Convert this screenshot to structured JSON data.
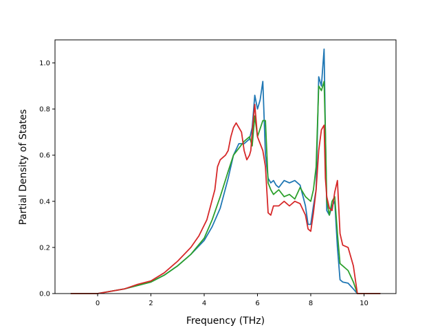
{
  "chart_data": {
    "type": "line",
    "title": "",
    "xlabel": "Frequency (THz)",
    "ylabel": "Partial Density of States",
    "xlim": [
      -1.6,
      11.2
    ],
    "ylim": [
      0,
      1.1
    ],
    "xticks": [
      0,
      2,
      4,
      6,
      8,
      10
    ],
    "yticks": [
      0.0,
      0.2,
      0.4,
      0.6,
      0.8,
      1.0
    ],
    "xtick_labels": [
      "0",
      "2",
      "4",
      "6",
      "8",
      "10"
    ],
    "ytick_labels": [
      "0.0",
      "0.2",
      "0.4",
      "0.6",
      "0.8",
      "1.0"
    ],
    "grid": false,
    "legend": false,
    "series": [
      {
        "color": "#1f77b4",
        "x": [
          -1.0,
          0.0,
          0.5,
          1.0,
          1.5,
          2.0,
          2.5,
          3.0,
          3.5,
          4.0,
          4.3,
          4.6,
          4.9,
          5.1,
          5.3,
          5.5,
          5.7,
          5.8,
          5.9,
          6.0,
          6.1,
          6.2,
          6.3,
          6.4,
          6.5,
          6.6,
          6.7,
          6.8,
          7.0,
          7.2,
          7.4,
          7.6,
          7.8,
          7.9,
          8.0,
          8.1,
          8.2,
          8.3,
          8.4,
          8.5,
          8.55,
          8.6,
          8.7,
          8.8,
          8.9,
          9.0,
          9.1,
          9.2,
          9.4,
          9.6,
          9.75,
          10.6
        ],
        "y": [
          0.0,
          0.0,
          0.01,
          0.02,
          0.035,
          0.05,
          0.08,
          0.12,
          0.17,
          0.23,
          0.29,
          0.37,
          0.5,
          0.6,
          0.65,
          0.65,
          0.67,
          0.72,
          0.86,
          0.8,
          0.84,
          0.92,
          0.6,
          0.5,
          0.48,
          0.49,
          0.47,
          0.46,
          0.49,
          0.48,
          0.49,
          0.47,
          0.38,
          0.3,
          0.3,
          0.38,
          0.45,
          0.94,
          0.9,
          1.06,
          0.7,
          0.36,
          0.34,
          0.38,
          0.4,
          0.2,
          0.06,
          0.05,
          0.045,
          0.02,
          0.0,
          0.0
        ]
      },
      {
        "color": "#2ca02c",
        "x": [
          -1.0,
          0.0,
          0.5,
          1.0,
          1.5,
          2.0,
          2.5,
          3.0,
          3.5,
          4.0,
          4.3,
          4.6,
          4.9,
          5.1,
          5.3,
          5.5,
          5.7,
          5.8,
          5.9,
          6.0,
          6.2,
          6.3,
          6.4,
          6.5,
          6.6,
          6.8,
          7.0,
          7.2,
          7.4,
          7.6,
          7.8,
          7.9,
          8.0,
          8.1,
          8.2,
          8.3,
          8.4,
          8.5,
          8.55,
          8.6,
          8.7,
          8.8,
          8.9,
          9.0,
          9.1,
          9.2,
          9.4,
          9.6,
          9.75,
          10.6
        ],
        "y": [
          0.0,
          0.0,
          0.01,
          0.02,
          0.035,
          0.05,
          0.08,
          0.12,
          0.17,
          0.24,
          0.32,
          0.42,
          0.53,
          0.6,
          0.63,
          0.66,
          0.68,
          0.64,
          0.77,
          0.68,
          0.75,
          0.75,
          0.48,
          0.45,
          0.43,
          0.45,
          0.42,
          0.43,
          0.41,
          0.46,
          0.42,
          0.41,
          0.4,
          0.45,
          0.55,
          0.9,
          0.88,
          0.92,
          0.7,
          0.4,
          0.34,
          0.4,
          0.42,
          0.26,
          0.13,
          0.12,
          0.1,
          0.05,
          0.0,
          0.0
        ]
      },
      {
        "color": "#d62728",
        "x": [
          -1.0,
          0.0,
          0.5,
          1.0,
          1.5,
          2.0,
          2.5,
          3.0,
          3.5,
          3.8,
          4.1,
          4.4,
          4.5,
          4.6,
          4.8,
          4.9,
          5.0,
          5.1,
          5.2,
          5.4,
          5.5,
          5.6,
          5.7,
          5.75,
          5.8,
          5.9,
          6.0,
          6.1,
          6.2,
          6.3,
          6.4,
          6.5,
          6.6,
          6.8,
          7.0,
          7.2,
          7.4,
          7.6,
          7.8,
          7.9,
          8.0,
          8.1,
          8.2,
          8.3,
          8.4,
          8.5,
          8.55,
          8.6,
          8.7,
          8.8,
          8.9,
          9.0,
          9.1,
          9.2,
          9.4,
          9.6,
          9.75,
          10.6
        ],
        "y": [
          0.0,
          0.0,
          0.01,
          0.02,
          0.04,
          0.055,
          0.09,
          0.14,
          0.2,
          0.25,
          0.32,
          0.45,
          0.55,
          0.58,
          0.6,
          0.62,
          0.68,
          0.72,
          0.74,
          0.7,
          0.62,
          0.58,
          0.6,
          0.62,
          0.7,
          0.82,
          0.68,
          0.65,
          0.62,
          0.55,
          0.35,
          0.34,
          0.38,
          0.38,
          0.4,
          0.38,
          0.4,
          0.39,
          0.34,
          0.28,
          0.27,
          0.35,
          0.45,
          0.62,
          0.71,
          0.73,
          0.5,
          0.42,
          0.37,
          0.36,
          0.44,
          0.49,
          0.26,
          0.21,
          0.2,
          0.12,
          0.0,
          0.0
        ]
      }
    ]
  }
}
